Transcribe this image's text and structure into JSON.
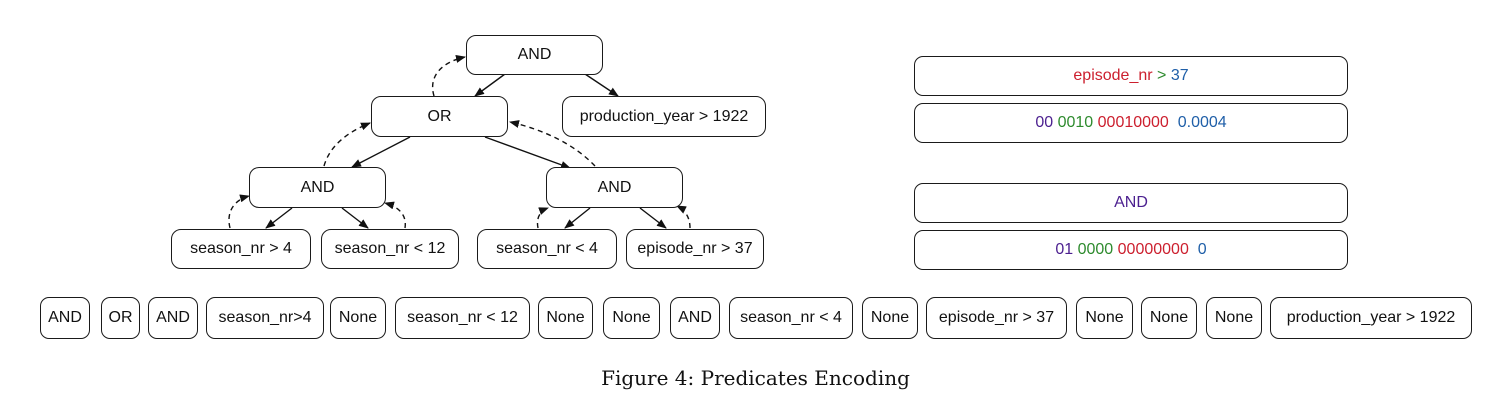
{
  "tree": {
    "root": "AND",
    "or": "OR",
    "production_year": "production_year > 1922",
    "and_left": "AND",
    "and_right": "AND",
    "season_gt4": "season_nr > 4",
    "season_lt12": "season_nr < 12",
    "season_lt4": "season_nr < 4",
    "episode_gt37": "episode_nr > 37"
  },
  "encoding": {
    "predicate": {
      "column": "episode_nr",
      "op": ">",
      "value": "37"
    },
    "predicate_vector": {
      "type": "00",
      "op": "0010",
      "column": "00010000",
      "value": "0.0004"
    },
    "operator": {
      "label": "AND"
    },
    "operator_vector": {
      "type": "01",
      "op": "0000",
      "column": "00000000",
      "value": "0"
    }
  },
  "colors": {
    "type": "#4b1f8f",
    "op": "#2e8b2e",
    "column": "#cc1f2e",
    "value": "#1f5fa8"
  },
  "sequence": [
    "AND",
    "OR",
    "AND",
    "season_nr>4",
    "None",
    "season_nr < 12",
    "None",
    "None",
    "AND",
    "season_nr < 4",
    "None",
    "episode_nr > 37",
    "None",
    "None",
    "None",
    "production_year > 1922"
  ],
  "caption": "Figure 4: Predicates Encoding"
}
